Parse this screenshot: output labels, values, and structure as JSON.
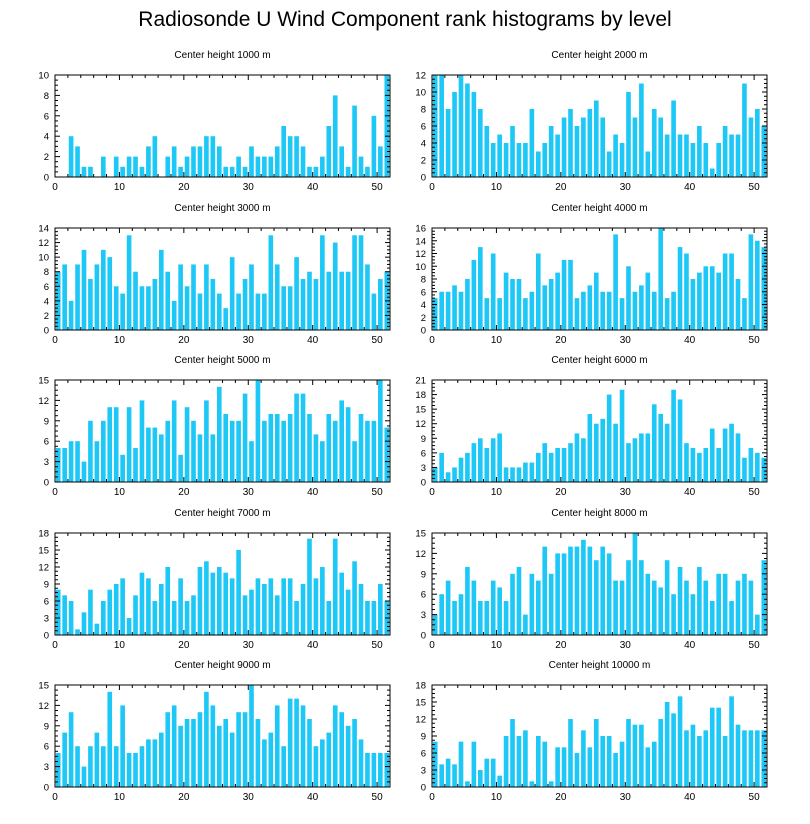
{
  "title": "Radiosonde U Wind Component rank histograms by level",
  "colors": {
    "bar": "#1ec8f6",
    "axis": "#000000",
    "background": "#ffffff"
  },
  "chart_data": [
    {
      "type": "bar",
      "title": "Center height 1000 m",
      "xlim": [
        0,
        52
      ],
      "ylim": [
        0,
        10
      ],
      "xticks": [
        0,
        10,
        20,
        30,
        40,
        50
      ],
      "yticks": [
        0,
        2,
        4,
        6,
        8,
        10
      ],
      "values": [
        0,
        0,
        4,
        3,
        1,
        1,
        0,
        2,
        0,
        2,
        1,
        2,
        2,
        1,
        3,
        4,
        0,
        2,
        3,
        1,
        2,
        3,
        3,
        4,
        4,
        3,
        1,
        1,
        2,
        1,
        3,
        2,
        2,
        2,
        3,
        5,
        4,
        4,
        3,
        1,
        1,
        2,
        5,
        8,
        3,
        1,
        7,
        2,
        1,
        6,
        3,
        10
      ]
    },
    {
      "type": "bar",
      "title": "Center height 2000 m",
      "xlim": [
        0,
        52
      ],
      "ylim": [
        0,
        12
      ],
      "xticks": [
        0,
        10,
        20,
        30,
        40,
        50
      ],
      "yticks": [
        0,
        2,
        4,
        6,
        8,
        10,
        12
      ],
      "values": [
        12,
        12,
        8,
        10,
        12,
        11,
        10,
        8,
        6,
        4,
        5,
        4,
        6,
        4,
        4,
        8,
        3,
        4,
        6,
        5,
        7,
        8,
        6,
        7,
        8,
        9,
        7,
        3,
        5,
        4,
        10,
        7,
        11,
        3,
        8,
        7,
        5,
        9,
        5,
        5,
        4,
        6,
        4,
        1,
        4,
        6,
        5,
        5,
        11,
        7,
        8,
        6
      ]
    },
    {
      "type": "bar",
      "title": "Center height 3000 m",
      "xlim": [
        0,
        52
      ],
      "ylim": [
        0,
        14
      ],
      "xticks": [
        0,
        10,
        20,
        30,
        40,
        50
      ],
      "yticks": [
        0,
        2,
        4,
        6,
        8,
        10,
        12,
        14
      ],
      "values": [
        8,
        9,
        4,
        9,
        11,
        7,
        9,
        11,
        10,
        6,
        5,
        13,
        8,
        6,
        6,
        7,
        11,
        8,
        4,
        9,
        6,
        9,
        5,
        9,
        7,
        5,
        3,
        10,
        5,
        7,
        9,
        5,
        5,
        13,
        9,
        6,
        6,
        10,
        7,
        8,
        7,
        13,
        8,
        12,
        8,
        8,
        13,
        13,
        9,
        5,
        7,
        8
      ]
    },
    {
      "type": "bar",
      "title": "Center height 4000 m",
      "xlim": [
        0,
        52
      ],
      "ylim": [
        0,
        16
      ],
      "xticks": [
        0,
        10,
        20,
        30,
        40,
        50
      ],
      "yticks": [
        0,
        2,
        4,
        6,
        8,
        10,
        12,
        14,
        16
      ],
      "values": [
        5,
        6,
        6,
        7,
        6,
        8,
        11,
        13,
        5,
        12,
        5,
        9,
        8,
        8,
        5,
        6,
        12,
        7,
        8,
        9,
        11,
        11,
        5,
        6,
        7,
        9,
        6,
        6,
        15,
        5,
        10,
        6,
        7,
        9,
        6,
        16,
        5,
        6,
        13,
        12,
        8,
        9,
        10,
        10,
        9,
        12,
        12,
        8,
        5,
        15,
        14,
        13
      ]
    },
    {
      "type": "bar",
      "title": "Center height 5000 m",
      "xlim": [
        0,
        52
      ],
      "ylim": [
        0,
        15
      ],
      "xticks": [
        0,
        10,
        20,
        30,
        40,
        50
      ],
      "yticks": [
        0,
        3,
        6,
        9,
        12,
        15
      ],
      "values": [
        5,
        5,
        6,
        6,
        3,
        9,
        6,
        9,
        11,
        11,
        4,
        11,
        5,
        12,
        8,
        8,
        7,
        9,
        12,
        4,
        11,
        9,
        7,
        12,
        7,
        14,
        10,
        9,
        9,
        13,
        6,
        15,
        9,
        10,
        10,
        9,
        10,
        13,
        13,
        10,
        7,
        6,
        10,
        9,
        12,
        11,
        6,
        10,
        9,
        9,
        15,
        8
      ]
    },
    {
      "type": "bar",
      "title": "Center height 6000 m",
      "xlim": [
        0,
        52
      ],
      "ylim": [
        0,
        21
      ],
      "xticks": [
        0,
        10,
        20,
        30,
        40,
        50
      ],
      "yticks": [
        0,
        3,
        6,
        9,
        12,
        15,
        18,
        21
      ],
      "values": [
        3,
        6,
        2,
        3,
        5,
        6,
        8,
        9,
        7,
        9,
        10,
        3,
        3,
        3,
        4,
        4,
        6,
        8,
        6,
        7,
        7,
        8,
        10,
        9,
        14,
        12,
        13,
        18,
        12,
        19,
        8,
        9,
        10,
        10,
        16,
        14,
        12,
        19,
        17,
        8,
        7,
        6,
        7,
        11,
        7,
        11,
        12,
        10,
        5,
        7,
        6,
        5
      ]
    },
    {
      "type": "bar",
      "title": "Center height 7000 m",
      "xlim": [
        0,
        52
      ],
      "ylim": [
        0,
        18
      ],
      "xticks": [
        0,
        10,
        20,
        30,
        40,
        50
      ],
      "yticks": [
        0,
        3,
        6,
        9,
        12,
        15,
        18
      ],
      "values": [
        8,
        7,
        6,
        1,
        4,
        8,
        2,
        6,
        8,
        9,
        10,
        3,
        7,
        11,
        10,
        6,
        9,
        12,
        6,
        10,
        6,
        7,
        12,
        13,
        11,
        12,
        11,
        10,
        15,
        7,
        8,
        10,
        9,
        10,
        7,
        10,
        10,
        6,
        9,
        17,
        10,
        12,
        6,
        17,
        11,
        8,
        13,
        9,
        6,
        6,
        9,
        6
      ]
    },
    {
      "type": "bar",
      "title": "Center height 8000 m",
      "xlim": [
        0,
        52
      ],
      "ylim": [
        0,
        15
      ],
      "xticks": [
        0,
        10,
        20,
        30,
        40,
        50
      ],
      "yticks": [
        0,
        3,
        6,
        9,
        12,
        15
      ],
      "values": [
        3,
        6,
        8,
        5,
        6,
        10,
        8,
        5,
        5,
        8,
        7,
        5,
        9,
        10,
        3,
        9,
        8,
        13,
        9,
        12,
        12,
        13,
        13,
        14,
        13,
        11,
        13,
        12,
        8,
        8,
        11,
        15,
        11,
        9,
        8,
        7,
        11,
        6,
        10,
        8,
        6,
        10,
        8,
        5,
        9,
        9,
        5,
        8,
        9,
        8,
        3,
        11
      ]
    },
    {
      "type": "bar",
      "title": "Center height 9000 m",
      "xlim": [
        0,
        52
      ],
      "ylim": [
        0,
        15
      ],
      "xticks": [
        0,
        10,
        20,
        30,
        40,
        50
      ],
      "yticks": [
        0,
        3,
        6,
        9,
        12,
        15
      ],
      "values": [
        5,
        8,
        11,
        6,
        3,
        6,
        8,
        6,
        14,
        6,
        12,
        5,
        5,
        6,
        7,
        7,
        8,
        11,
        12,
        9,
        10,
        10,
        11,
        14,
        12,
        9,
        10,
        8,
        11,
        11,
        15,
        10,
        7,
        8,
        12,
        6,
        13,
        13,
        12,
        10,
        6,
        7,
        8,
        12,
        11,
        9,
        10,
        7,
        5,
        5,
        5,
        5
      ]
    },
    {
      "type": "bar",
      "title": "Center height 10000 m",
      "xlim": [
        0,
        52
      ],
      "ylim": [
        0,
        18
      ],
      "xticks": [
        0,
        10,
        20,
        30,
        40,
        50
      ],
      "yticks": [
        0,
        3,
        6,
        9,
        12,
        15,
        18
      ],
      "values": [
        8,
        4,
        5,
        4,
        8,
        1,
        8,
        3,
        5,
        5,
        2,
        9,
        12,
        9,
        10,
        1,
        9,
        8,
        1,
        7,
        7,
        12,
        6,
        10,
        7,
        12,
        9,
        9,
        6,
        8,
        12,
        11,
        11,
        7,
        8,
        12,
        15,
        13,
        16,
        10,
        11,
        9,
        10,
        14,
        14,
        9,
        16,
        11,
        10,
        10,
        10,
        10
      ]
    }
  ]
}
